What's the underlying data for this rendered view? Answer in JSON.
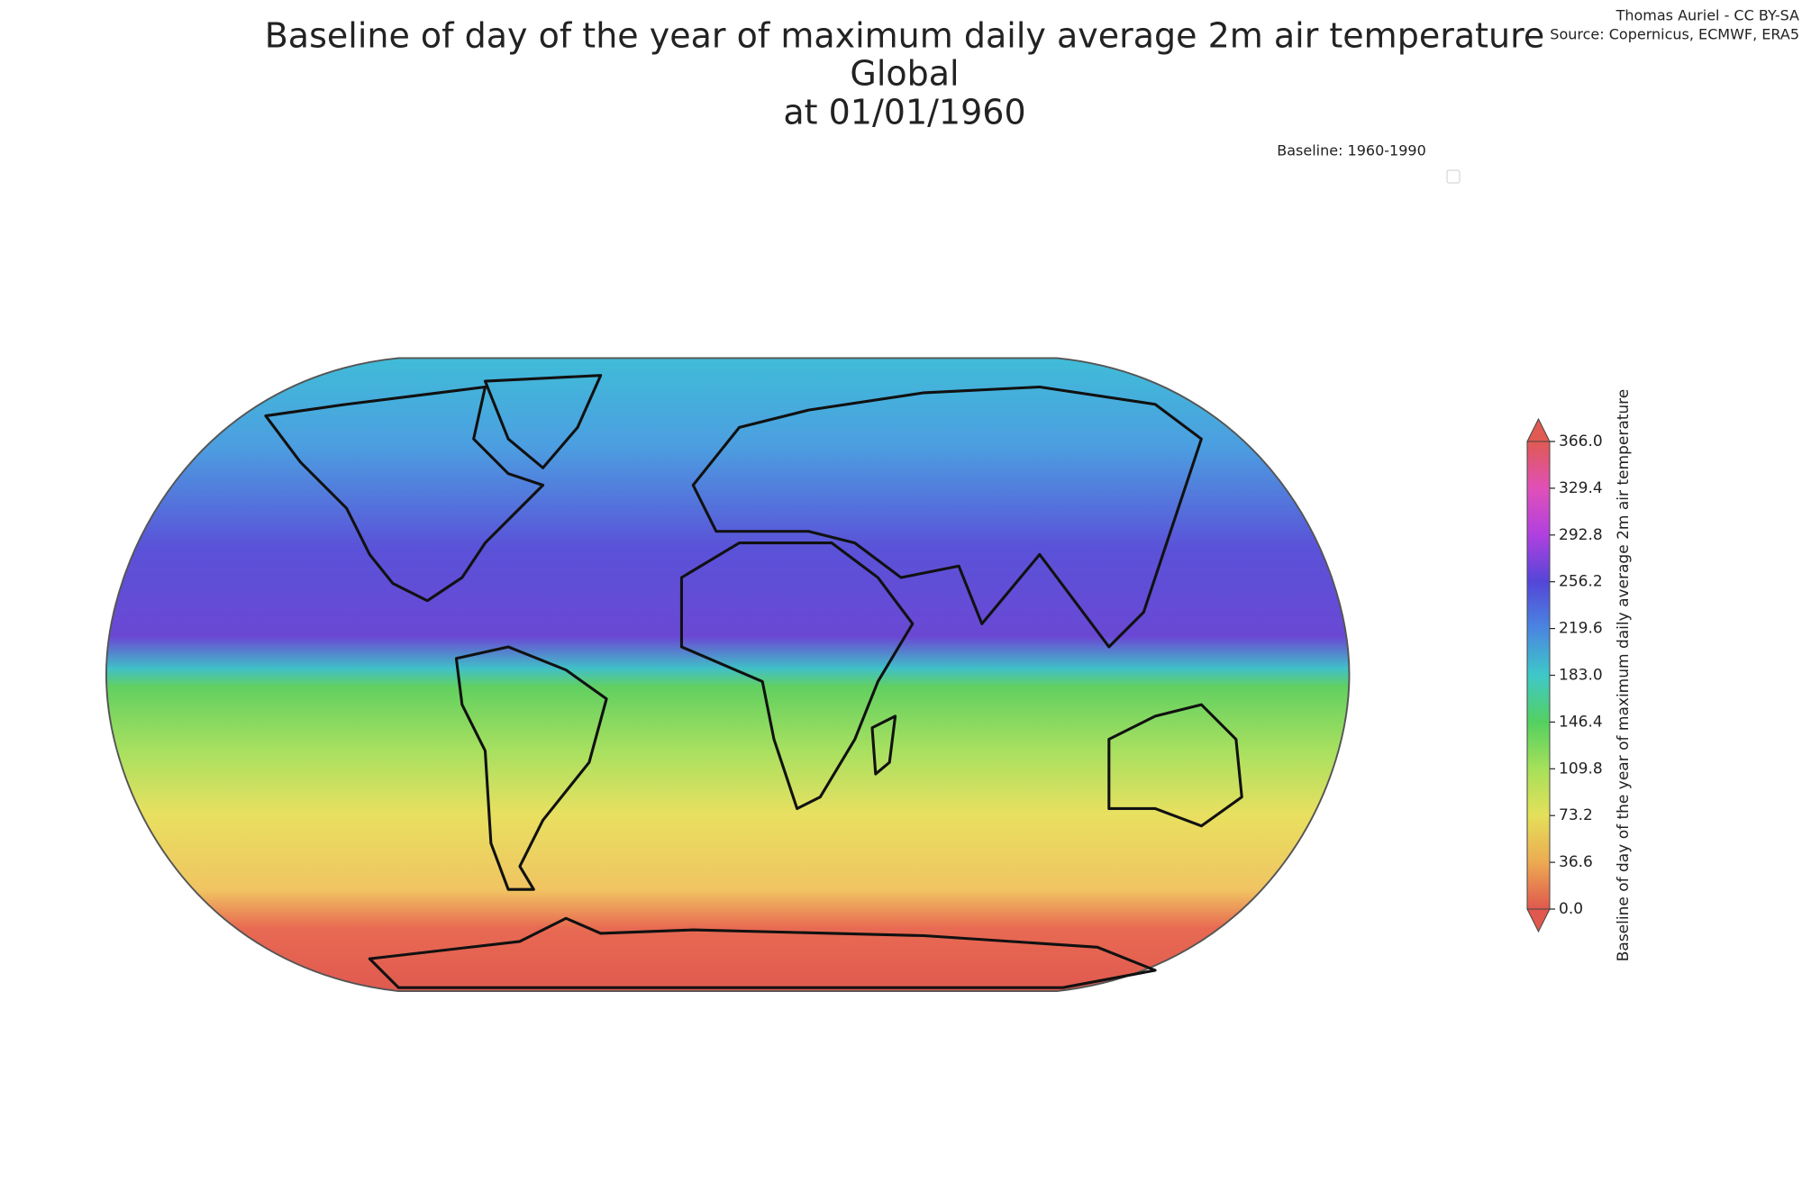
{
  "title_lines": [
    "Baseline of day of the year of maximum daily average 2m air temperature",
    "Global",
    "at 01/01/1960"
  ],
  "credits": [
    "Thomas Auriel - CC BY-SA",
    "Source: Copernicus, ECMWF, ERA5"
  ],
  "note": "Baseline: 1960-1990",
  "chart_data": {
    "type": "colorbar",
    "label": "Baseline of day of the year of maximum daily average 2m air temperature",
    "ylim": [
      0,
      366
    ],
    "yticks": [
      {
        "value": 0,
        "label": "0.0"
      },
      36.6,
      73.2,
      109.8,
      146.4,
      {
        "value": 183,
        "label": "183.0"
      },
      219.6,
      256.2,
      292.8,
      329.4,
      {
        "value": 366,
        "label": "366.0"
      }
    ],
    "colormap": [
      "#e0584e",
      "#ecaa52",
      "#e4e05a",
      "#a6e05a",
      "#54d060",
      "#3ec8c8",
      "#4a86e0",
      "#5446d8",
      "#b040e0",
      "#e050b8",
      "#e05a52"
    ]
  }
}
